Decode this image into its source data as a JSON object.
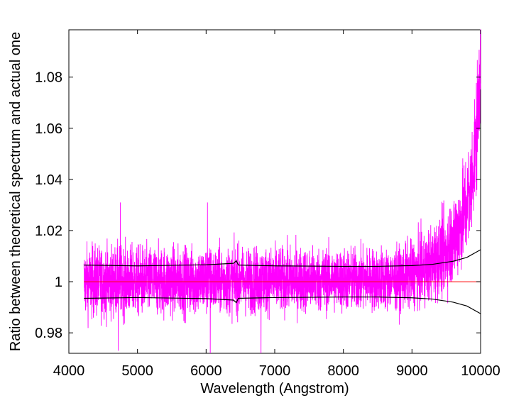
{
  "chart_data": {
    "type": "line",
    "title": "",
    "xlabel": "Wavelength (Angstrom)",
    "ylabel": "Ratio between theoretical spectrum and actual one",
    "xlim": [
      4000,
      10000
    ],
    "ylim": [
      0.972,
      1.0985
    ],
    "xticks": [
      4000,
      5000,
      6000,
      7000,
      8000,
      9000,
      10000
    ],
    "xtick_labels": [
      "4000",
      "5000",
      "6000",
      "7000",
      "8000",
      "9000",
      "10000"
    ],
    "yticks": [
      0.98,
      1.0,
      1.02,
      1.04,
      1.06,
      1.08
    ],
    "ytick_labels": [
      "0.98",
      "1",
      "1.02",
      "1.04",
      "1.06",
      "1.08"
    ],
    "grid": false,
    "legend": "none",
    "series": [
      {
        "role": "ratio",
        "color": "#ff00ff",
        "x_range": [
          4220,
          10000
        ],
        "baseline": [
          [
            4220,
            1.0
          ],
          [
            8800,
            1.001
          ],
          [
            9200,
            1.005
          ],
          [
            9500,
            1.012
          ],
          [
            9700,
            1.022
          ],
          [
            9850,
            1.035
          ],
          [
            9950,
            1.06
          ],
          [
            10000,
            1.09
          ]
        ],
        "spread": [
          [
            4220,
            0.007
          ],
          [
            8800,
            0.006
          ],
          [
            9500,
            0.008
          ],
          [
            10000,
            0.012
          ]
        ],
        "peaks": [
          [
            4750,
            1.031
          ],
          [
            6020,
            1.031
          ],
          [
            4720,
            0.973
          ],
          [
            6060,
            0.972
          ],
          [
            6800,
            0.972
          ]
        ]
      },
      {
        "role": "upper-error",
        "color": "#000000",
        "values": [
          [
            4220,
            1.0065
          ],
          [
            5000,
            1.0062
          ],
          [
            6000,
            1.0066
          ],
          [
            6400,
            1.0072
          ],
          [
            6440,
            1.0082
          ],
          [
            6470,
            1.0065
          ],
          [
            7000,
            1.0062
          ],
          [
            8000,
            1.006
          ],
          [
            8500,
            1.006
          ],
          [
            9000,
            1.0063
          ],
          [
            9300,
            1.0068
          ],
          [
            9600,
            1.008
          ],
          [
            9800,
            1.0095
          ],
          [
            10000,
            1.0125
          ]
        ]
      },
      {
        "role": "lower-error",
        "color": "#000000",
        "values": [
          [
            4220,
            0.9935
          ],
          [
            5000,
            0.9938
          ],
          [
            6000,
            0.9934
          ],
          [
            6400,
            0.9928
          ],
          [
            6440,
            0.9918
          ],
          [
            6470,
            0.9935
          ],
          [
            7000,
            0.9938
          ],
          [
            8000,
            0.994
          ],
          [
            8500,
            0.994
          ],
          [
            9000,
            0.9937
          ],
          [
            9300,
            0.9932
          ],
          [
            9600,
            0.992
          ],
          [
            9800,
            0.9905
          ],
          [
            10000,
            0.9875
          ]
        ]
      },
      {
        "role": "reference",
        "color": "#ff0000",
        "values": [
          [
            4220,
            1.0
          ],
          [
            10000,
            1.0
          ]
        ]
      }
    ]
  }
}
